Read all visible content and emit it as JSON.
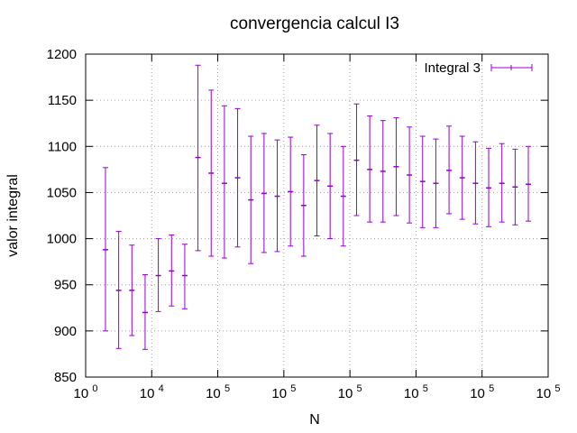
{
  "chart_data": {
    "type": "errorbar",
    "title": "convergencia calcul I3",
    "xlabel": "N",
    "ylabel": "valor integral",
    "ylim": [
      850,
      1200
    ],
    "yticks": [
      850,
      900,
      950,
      1000,
      1050,
      1100,
      1150,
      1200
    ],
    "xlim_index": [
      0,
      7
    ],
    "xtick_labels": [
      {
        "base": "10",
        "exp": "0"
      },
      {
        "base": "10",
        "exp": "4"
      },
      {
        "base": "10",
        "exp": "5"
      },
      {
        "base": "10",
        "exp": "5"
      },
      {
        "base": "10",
        "exp": "5"
      },
      {
        "base": "10",
        "exp": "5"
      },
      {
        "base": "10",
        "exp": "5"
      },
      {
        "base": "10",
        "exp": "5"
      }
    ],
    "grid": true,
    "legend_position": "top-right",
    "series": [
      {
        "name": "Integral 3",
        "color": "#9400d3",
        "x": [
          0.3,
          0.5,
          0.7,
          0.9,
          1.1,
          1.3,
          1.5,
          1.7,
          1.9,
          2.1,
          2.3,
          2.5,
          2.7,
          2.9,
          3.1,
          3.3,
          3.5,
          3.7,
          3.9,
          4.1,
          4.3,
          4.5,
          4.7,
          4.9,
          5.1,
          5.3,
          5.5,
          5.7,
          5.9,
          6.1,
          6.3,
          6.5,
          6.7
        ],
        "y": [
          988,
          944,
          944,
          920,
          960,
          965,
          960,
          1088,
          1071,
          1060,
          1066,
          1042,
          1049,
          1046,
          1051,
          1036,
          1063,
          1057,
          1046,
          1085,
          1075,
          1073,
          1078,
          1069,
          1062,
          1060,
          1074,
          1066,
          1060,
          1055,
          1060,
          1056,
          1059
        ],
        "yerr_low": [
          900,
          881,
          895,
          880,
          921,
          927,
          924,
          987,
          981,
          979,
          991,
          973,
          985,
          986,
          992,
          981,
          1003,
          1000,
          992,
          1025,
          1018,
          1018,
          1025,
          1017,
          1012,
          1012,
          1027,
          1021,
          1016,
          1013,
          1018,
          1015,
          1019
        ],
        "yerr_high": [
          1077,
          1008,
          993,
          961,
          1000,
          1004,
          994,
          1188,
          1161,
          1144,
          1141,
          1111,
          1114,
          1107,
          1110,
          1091,
          1123,
          1114,
          1100,
          1146,
          1133,
          1128,
          1131,
          1121,
          1111,
          1108,
          1122,
          1111,
          1105,
          1098,
          1103,
          1097,
          1100
        ]
      }
    ]
  }
}
